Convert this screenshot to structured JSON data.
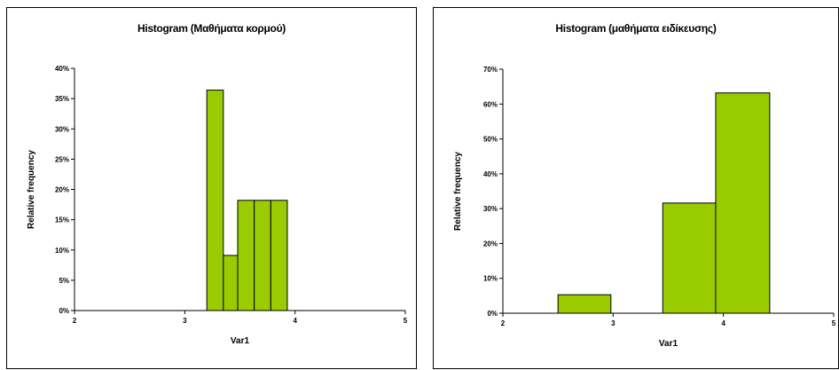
{
  "chart_data": [
    {
      "type": "bar",
      "title": "Histogram (Μαθήματα κορμού)",
      "xlabel": "Var1",
      "ylabel": "Relative frequency",
      "xlim": [
        2,
        5
      ],
      "ylim": [
        0,
        0.4
      ],
      "x_ticks": [
        2,
        3,
        4,
        5
      ],
      "y_ticks": [
        0,
        0.05,
        0.1,
        0.15,
        0.2,
        0.25,
        0.3,
        0.35,
        0.4
      ],
      "y_tick_labels": [
        "0%",
        "5%",
        "10%",
        "15%",
        "20%",
        "25%",
        "30%",
        "35%",
        "40%"
      ],
      "bins": [
        {
          "x0": 3.2,
          "x1": 3.35,
          "value": 0.364
        },
        {
          "x0": 3.35,
          "x1": 3.48,
          "value": 0.091
        },
        {
          "x0": 3.48,
          "x1": 3.63,
          "value": 0.182
        },
        {
          "x0": 3.63,
          "x1": 3.78,
          "value": 0.182
        },
        {
          "x0": 3.78,
          "x1": 3.93,
          "value": 0.182
        }
      ],
      "bar_color": "#99cc00",
      "grid": false
    },
    {
      "type": "bar",
      "title": "Histogram (μαθήματα ειδίκευσης)",
      "xlabel": "Var1",
      "ylabel": "Relative frequency",
      "xlim": [
        2,
        5
      ],
      "ylim": [
        0,
        0.7
      ],
      "x_ticks": [
        2,
        3,
        4,
        5
      ],
      "y_ticks": [
        0,
        0.1,
        0.2,
        0.3,
        0.4,
        0.5,
        0.6,
        0.7
      ],
      "y_tick_labels": [
        "0%",
        "10%",
        "20%",
        "30%",
        "40%",
        "50%",
        "60%",
        "70%"
      ],
      "bins": [
        {
          "x0": 2.5,
          "x1": 2.98,
          "value": 0.053
        },
        {
          "x0": 3.45,
          "x1": 3.93,
          "value": 0.316
        },
        {
          "x0": 3.93,
          "x1": 4.42,
          "value": 0.632
        }
      ],
      "bar_color": "#99cc00",
      "grid": false
    }
  ]
}
